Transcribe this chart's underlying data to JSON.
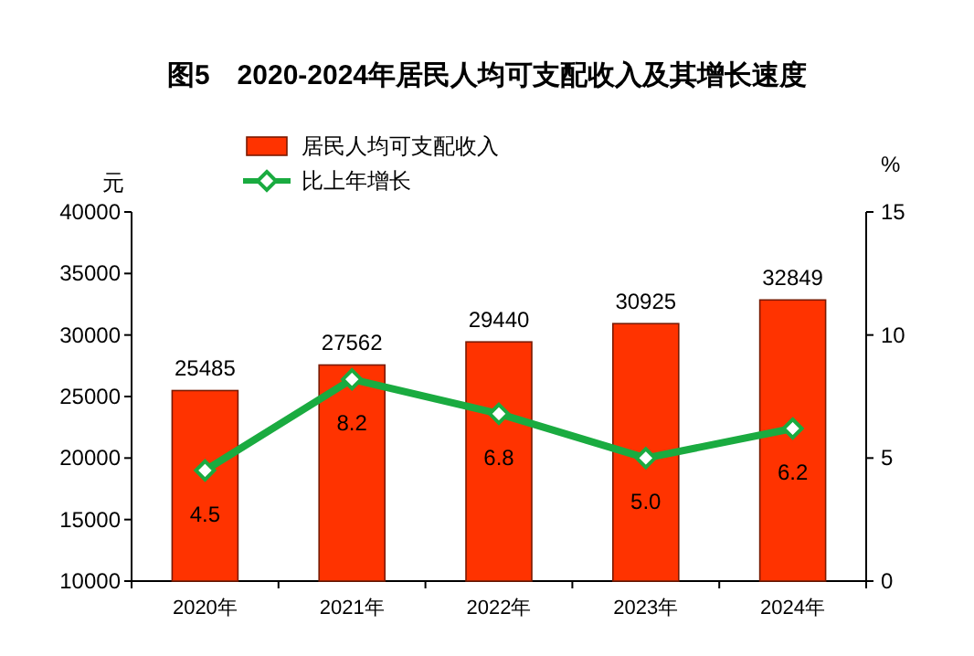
{
  "chart_data": {
    "type": "bar",
    "title": "图5　2020-2024年居民人均可支配收入及其增长速度",
    "ylabel": "元",
    "y2label": "%",
    "categories": [
      "2020年",
      "2021年",
      "2022年",
      "2023年",
      "2024年"
    ],
    "series": [
      {
        "name": "居民人均可支配收入",
        "color": "#ff3300",
        "values": [
          25485,
          27562,
          29440,
          30925,
          32849
        ],
        "value_labels": [
          "25485",
          "27562",
          "29440",
          "30925",
          "32849"
        ]
      },
      {
        "name": "比上年增长",
        "type": "line",
        "axis": "y2",
        "color": "#1aab40",
        "values": [
          4.5,
          8.2,
          6.8,
          5.0,
          6.2
        ],
        "value_labels": [
          "4.5",
          "8.2",
          "6.8",
          "5.0",
          "6.2"
        ]
      }
    ],
    "ylim": [
      10000,
      40000
    ],
    "yticks": [
      10000,
      15000,
      20000,
      25000,
      30000,
      35000,
      40000
    ],
    "y2lim": [
      0,
      15
    ],
    "y2ticks": [
      0,
      5,
      10,
      15
    ],
    "legend": "top left",
    "marker": "diamond",
    "line_style": "solid",
    "grid": false
  }
}
